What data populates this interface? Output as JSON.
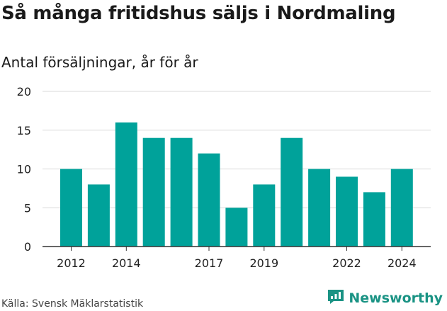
{
  "title": "Så många fritidshus säljs i Nordmaling",
  "subtitle": "Antal försäljningar, år för år",
  "source": "Källa: Svensk Mäklarstatistik",
  "brand": {
    "name": "Newsworthy",
    "icon": "newsworthy-logo-icon",
    "color": "#1a9384"
  },
  "colors": {
    "bar": "#00a29a",
    "grid": "#d9d9d9",
    "axis": "#333333"
  },
  "chart_data": {
    "type": "bar",
    "title": "Så många fritidshus säljs i Nordmaling",
    "subtitle": "Antal försäljningar, år för år",
    "categories": [
      2012,
      2013,
      2014,
      2015,
      2016,
      2017,
      2018,
      2019,
      2020,
      2021,
      2022,
      2023,
      2024
    ],
    "values": [
      10,
      8,
      16,
      14,
      14,
      12,
      5,
      8,
      14,
      10,
      9,
      7,
      10
    ],
    "x_tick_labels": [
      "2012",
      "2014",
      "2017",
      "2019",
      "2022",
      "2024"
    ],
    "y_ticks": [
      0,
      5,
      10,
      15,
      20
    ],
    "ylim": [
      0,
      20
    ],
    "grid": true,
    "legend": "none"
  }
}
